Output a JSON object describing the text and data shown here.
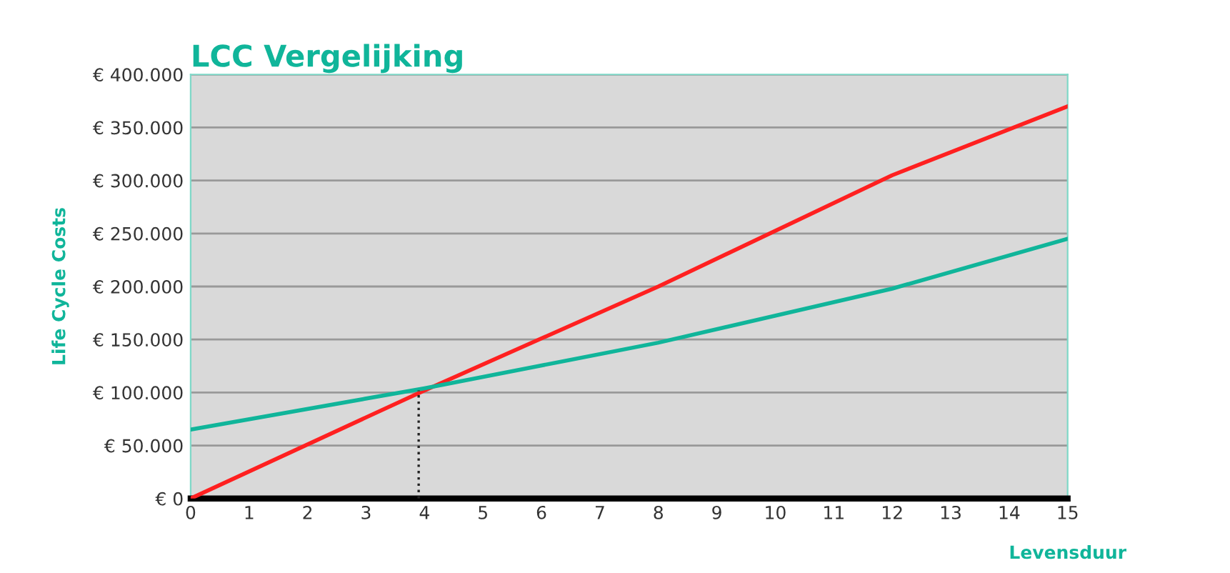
{
  "chart_data": {
    "type": "line",
    "title": "LCC Vergelijking",
    "xlabel": "Levensduur",
    "ylabel": "Life Cycle Costs",
    "xlim": [
      0,
      15
    ],
    "xticks": [
      0,
      1,
      2,
      3,
      4,
      5,
      6,
      7,
      8,
      9,
      10,
      11,
      12,
      13,
      14,
      15
    ],
    "ylim": [
      0,
      400000
    ],
    "yticks": [
      {
        "value": 0,
        "label": "€ 0"
      },
      {
        "value": 50000,
        "label": "€ 50.000"
      },
      {
        "value": 100000,
        "label": "€ 100.000"
      },
      {
        "value": 150000,
        "label": "€ 150.000"
      },
      {
        "value": 200000,
        "label": "€ 200.000"
      },
      {
        "value": 250000,
        "label": "€ 250.000"
      },
      {
        "value": 300000,
        "label": "€ 300.000"
      },
      {
        "value": 350000,
        "label": "€ 350.000"
      },
      {
        "value": 400000,
        "label": "€ 400.000"
      }
    ],
    "grid": "y",
    "legend": false,
    "marker": "none",
    "series": [
      {
        "color": "#ff2020",
        "x": [
          0,
          4,
          8,
          12,
          15
        ],
        "values": [
          0,
          102000,
          200000,
          305000,
          370000
        ]
      },
      {
        "color": "#10b59a",
        "x": [
          0,
          4,
          8,
          12,
          15
        ],
        "values": [
          65000,
          104000,
          147000,
          198000,
          245000
        ]
      },
      {
        "color": "#222222",
        "x": [
          3.9,
          3.9
        ],
        "values": [
          0,
          102000
        ],
        "line_style": "dotted"
      }
    ]
  }
}
